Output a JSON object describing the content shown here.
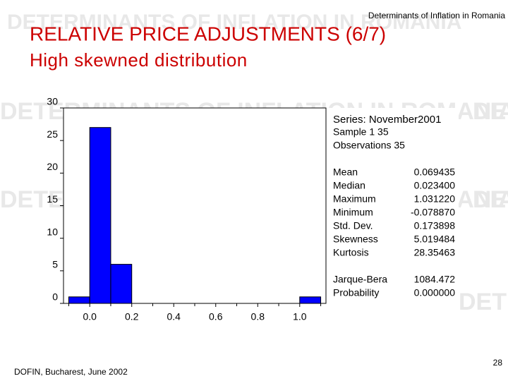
{
  "slide": {
    "header": "Determinants of Inflation in Romania",
    "title": "RELATIVE PRICE ADJUSTMENTS (6/7)",
    "subtitle": "High skewned distribution",
    "watermark": "DETERMINANTS OF INFLATION IN ROMANIA",
    "footer": "DOFIN, Bucharest, June 2002",
    "page_number": "28"
  },
  "chart_data": {
    "type": "histogram",
    "bins": [
      -0.1,
      0,
      0.1,
      0.2,
      0.3,
      0.4,
      0.5,
      0.6,
      0.7,
      0.8,
      0.9,
      1.0,
      1.1
    ],
    "counts": [
      1,
      27,
      6,
      0,
      0,
      0,
      0,
      0,
      0,
      0,
      0,
      1
    ],
    "color": "#0000ff",
    "xlim": [
      -0.125,
      1.125
    ],
    "xticks": [
      {
        "value": 0,
        "label": "0.0"
      },
      0.2,
      0.4,
      0.6,
      0.8,
      {
        "value": 1,
        "label": "1.0"
      }
    ],
    "ylim": [
      0,
      30
    ],
    "yticks": [
      0,
      5,
      10,
      15,
      20,
      25,
      30
    ]
  },
  "stats": {
    "series": "Series: November2001",
    "sample": "Sample 1 35",
    "observations": "Observations 35",
    "rows": [
      [
        "Mean",
        "0.069435"
      ],
      [
        "Median",
        "0.023400"
      ],
      [
        "Maximum",
        "1.031220"
      ],
      [
        "Minimum",
        "-0.078870"
      ],
      [
        "Std. Dev.",
        "0.173898"
      ],
      [
        "Skewness",
        "5.019484"
      ],
      [
        "Kurtosis",
        "28.35463"
      ],
      [
        "Jarque-Bera",
        "1084.472"
      ],
      [
        "Probability",
        "0.000000"
      ]
    ]
  }
}
